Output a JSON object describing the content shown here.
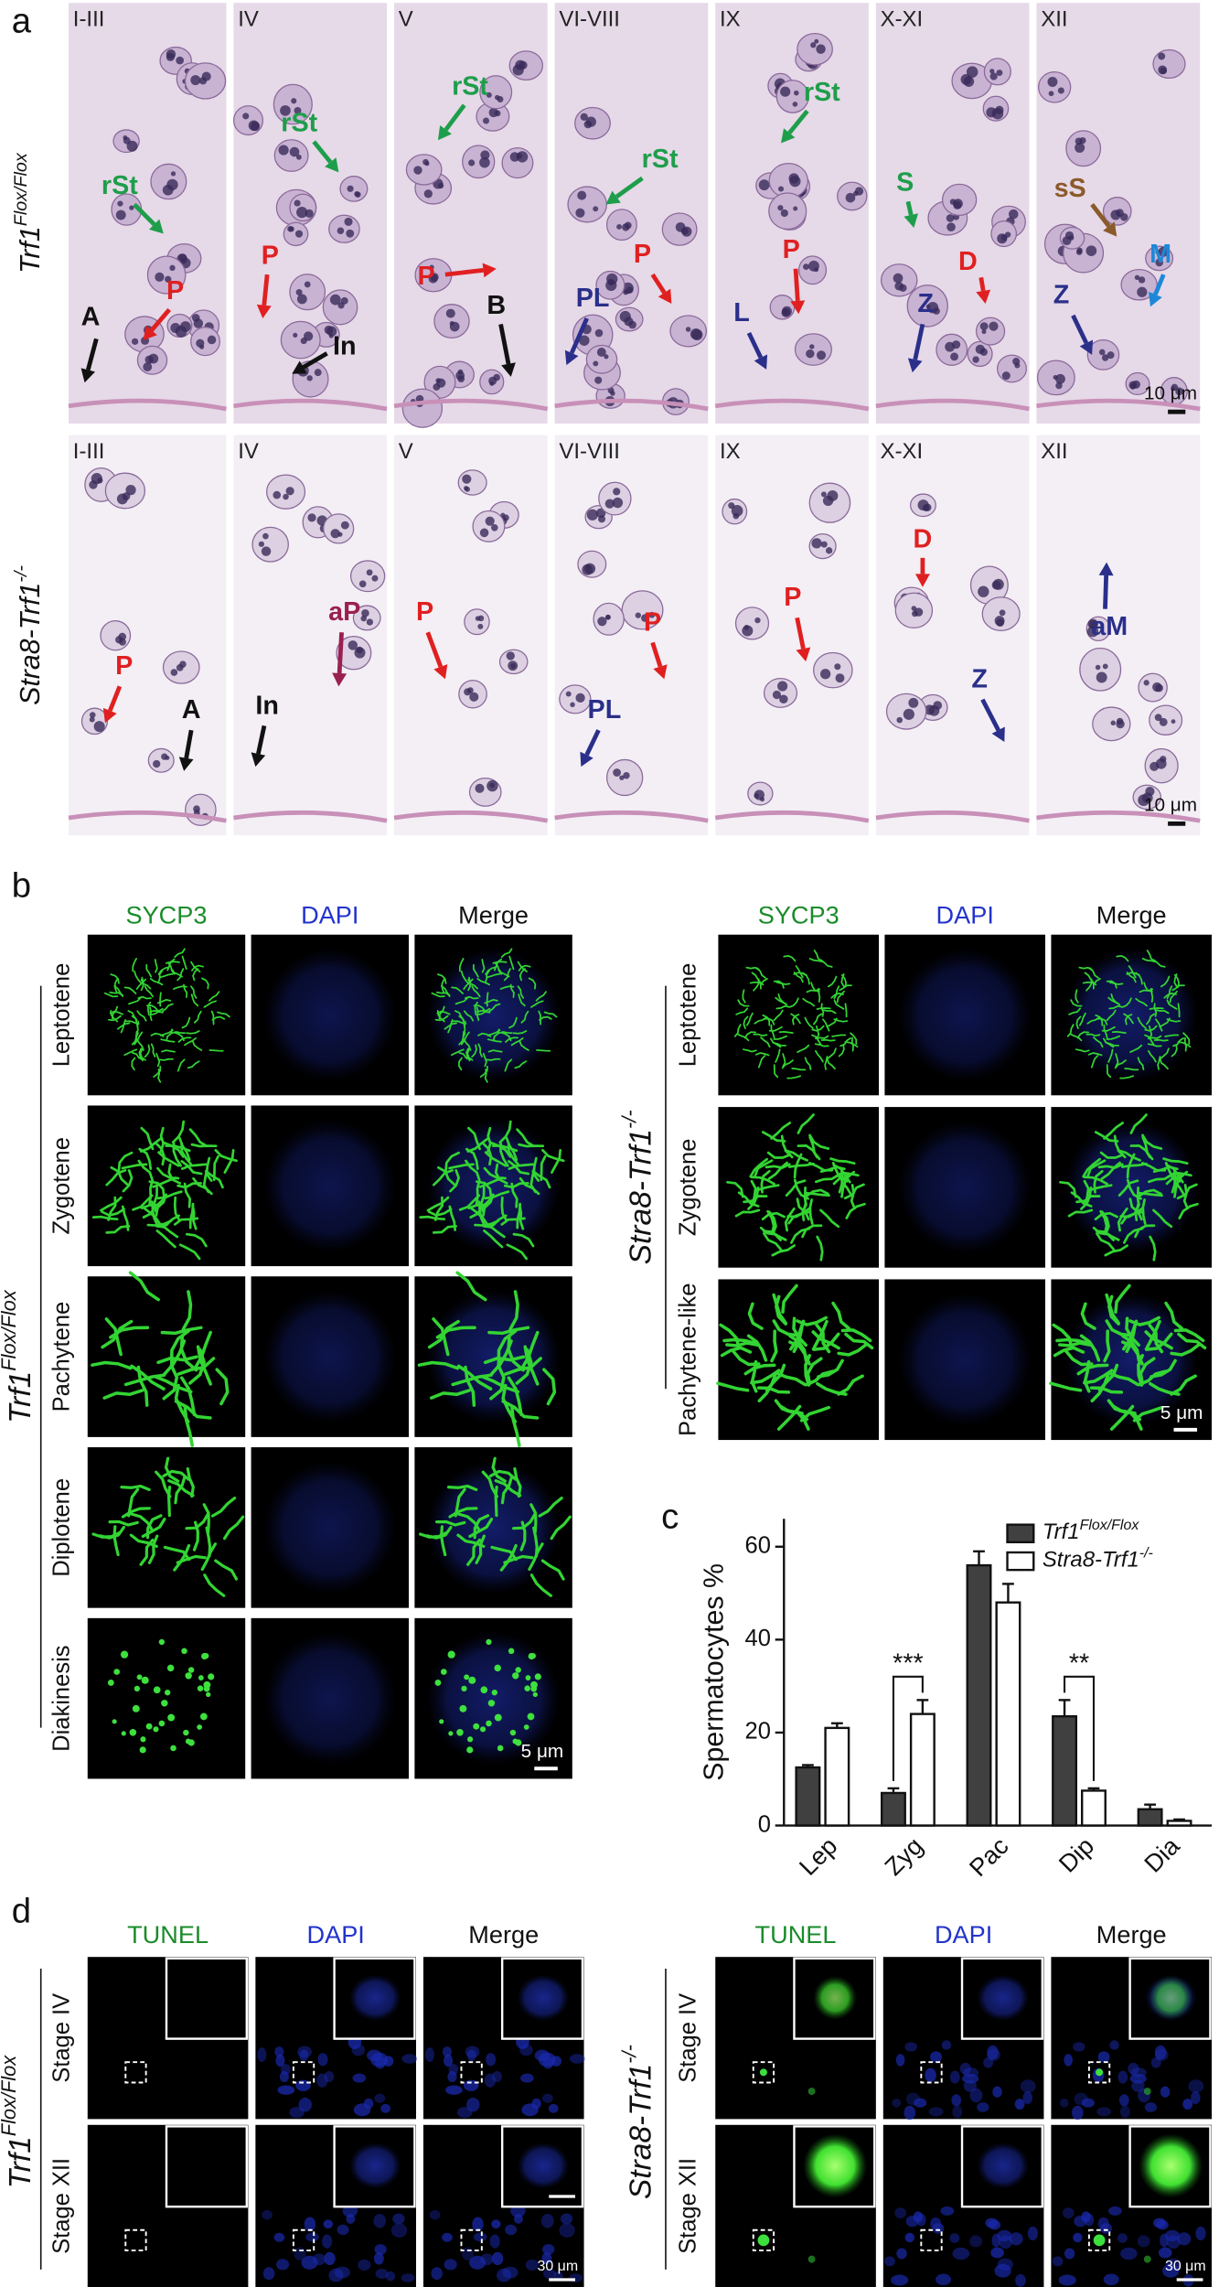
{
  "panel_a": {
    "label": "a",
    "rows": [
      {
        "genotype": {
          "base": "Trf1",
          "sup": "Flox/Flox"
        },
        "scale_bar": "10 μm",
        "cells": [
          {
            "stage": "I-III",
            "arrows": [
              {
                "label": "rSt",
                "color": "#1e9e4a"
              },
              {
                "label": "P",
                "color": "#e02020"
              },
              {
                "label": "A",
                "color": "#111111"
              }
            ]
          },
          {
            "stage": "IV",
            "arrows": [
              {
                "label": "rSt",
                "color": "#1e9e4a"
              },
              {
                "label": "P",
                "color": "#e02020"
              },
              {
                "label": "In",
                "color": "#111111"
              }
            ]
          },
          {
            "stage": "V",
            "arrows": [
              {
                "label": "rSt",
                "color": "#1e9e4a"
              },
              {
                "label": "P",
                "color": "#e02020"
              },
              {
                "label": "B",
                "color": "#111111"
              }
            ]
          },
          {
            "stage": "VI-VIII",
            "arrows": [
              {
                "label": "rSt",
                "color": "#1e9e4a"
              },
              {
                "label": "P",
                "color": "#e02020"
              },
              {
                "label": "PL",
                "color": "#2a2f8a"
              }
            ]
          },
          {
            "stage": "IX",
            "arrows": [
              {
                "label": "rSt",
                "color": "#1e9e4a"
              },
              {
                "label": "P",
                "color": "#e02020"
              },
              {
                "label": "L",
                "color": "#2a2f8a"
              }
            ]
          },
          {
            "stage": "X-XI",
            "arrows": [
              {
                "label": "S",
                "color": "#1e9e4a"
              },
              {
                "label": "D",
                "color": "#e02020"
              },
              {
                "label": "Z",
                "color": "#2a2f8a"
              }
            ]
          },
          {
            "stage": "XII",
            "arrows": [
              {
                "label": "sS",
                "color": "#8b5a2b"
              },
              {
                "label": "M",
                "color": "#1e88d8"
              },
              {
                "label": "Z",
                "color": "#2a2f8a"
              }
            ]
          }
        ]
      },
      {
        "genotype": {
          "base": "Stra8-Trf1",
          "sup": "-/-"
        },
        "scale_bar": "10 μm",
        "cells": [
          {
            "stage": "I-III",
            "arrows": [
              {
                "label": "P",
                "color": "#e02020"
              },
              {
                "label": "A",
                "color": "#111111"
              }
            ]
          },
          {
            "stage": "IV",
            "arrows": [
              {
                "label": "aP",
                "color": "#9a2050"
              },
              {
                "label": "In",
                "color": "#111111"
              }
            ]
          },
          {
            "stage": "V",
            "arrows": [
              {
                "label": "P",
                "color": "#e02020"
              }
            ]
          },
          {
            "stage": "VI-VIII",
            "arrows": [
              {
                "label": "P",
                "color": "#e02020"
              },
              {
                "label": "PL",
                "color": "#2a2f8a"
              }
            ]
          },
          {
            "stage": "IX",
            "arrows": [
              {
                "label": "P",
                "color": "#e02020"
              }
            ]
          },
          {
            "stage": "X-XI",
            "arrows": [
              {
                "label": "D",
                "color": "#e02020"
              },
              {
                "label": "Z",
                "color": "#2a2f8a"
              }
            ]
          },
          {
            "stage": "XII",
            "arrows": [
              {
                "label": "aM",
                "color": "#2a2f8a"
              }
            ]
          }
        ]
      }
    ]
  },
  "panel_b": {
    "label": "b",
    "groups": [
      {
        "genotype": {
          "base": "Trf1",
          "sup": "Flox/Flox"
        },
        "columns": [
          {
            "text": "SYCP3",
            "color": "#1a8c2a"
          },
          {
            "text": "DAPI",
            "color": "#2233cc"
          },
          {
            "text": "Merge",
            "color": "#111111"
          }
        ],
        "rows": [
          "Leptotene",
          "Zygotene",
          "Pachytene",
          "Diplotene",
          "Diakinesis"
        ],
        "scale_bar": "5 μm"
      },
      {
        "genotype": {
          "base": "Stra8-Trf1",
          "sup": "-/-"
        },
        "columns": [
          {
            "text": "SYCP3",
            "color": "#1a8c2a"
          },
          {
            "text": "DAPI",
            "color": "#2233cc"
          },
          {
            "text": "Merge",
            "color": "#111111"
          }
        ],
        "rows": [
          "Leptotene",
          "Zygotene",
          "Pachytene-like"
        ],
        "scale_bar": "5 μm"
      }
    ]
  },
  "chart_data": {
    "type": "bar",
    "panel_label": "c",
    "ylabel": "Spermatocytes %",
    "categories": [
      "Lep",
      "Zyg",
      "Pac",
      "Dip",
      "Dia"
    ],
    "series": [
      {
        "name": "Trf1",
        "name_sup": "Flox/Flox",
        "color": "#404040",
        "values": [
          12.5,
          7,
          56,
          23.5,
          3.5
        ],
        "errors": [
          0.5,
          1,
          3,
          3.5,
          1
        ]
      },
      {
        "name": "Stra8-Trf1",
        "name_sup": "-/-",
        "color": "#ffffff",
        "values": [
          21,
          24,
          48,
          7.5,
          1
        ],
        "errors": [
          1,
          3,
          4,
          0.5,
          0.3
        ]
      }
    ],
    "ylim": [
      0,
      66
    ],
    "yticks": [
      0,
      20,
      40,
      60
    ],
    "grid": false,
    "legend": "top-right",
    "annotations": [
      {
        "text": "***",
        "category": 1
      },
      {
        "text": "**",
        "category": 3
      }
    ]
  },
  "panel_d": {
    "label": "d",
    "groups": [
      {
        "genotype": {
          "base": "Trf1",
          "sup": "Flox/Flox"
        },
        "columns": [
          {
            "text": "TUNEL",
            "color": "#1a8c2a"
          },
          {
            "text": "DAPI",
            "color": "#2233cc"
          },
          {
            "text": "Merge",
            "color": "#111111"
          }
        ],
        "rows": [
          "Stage IV",
          "Stage XII"
        ],
        "scale_bar": "30 μm"
      },
      {
        "genotype": {
          "base": "Stra8-Trf1",
          "sup": "-/-"
        },
        "columns": [
          {
            "text": "TUNEL",
            "color": "#1a8c2a"
          },
          {
            "text": "DAPI",
            "color": "#2233cc"
          },
          {
            "text": "Merge",
            "color": "#111111"
          }
        ],
        "rows": [
          "Stage IV",
          "Stage XII"
        ],
        "scale_bar": "30 μm"
      }
    ]
  }
}
